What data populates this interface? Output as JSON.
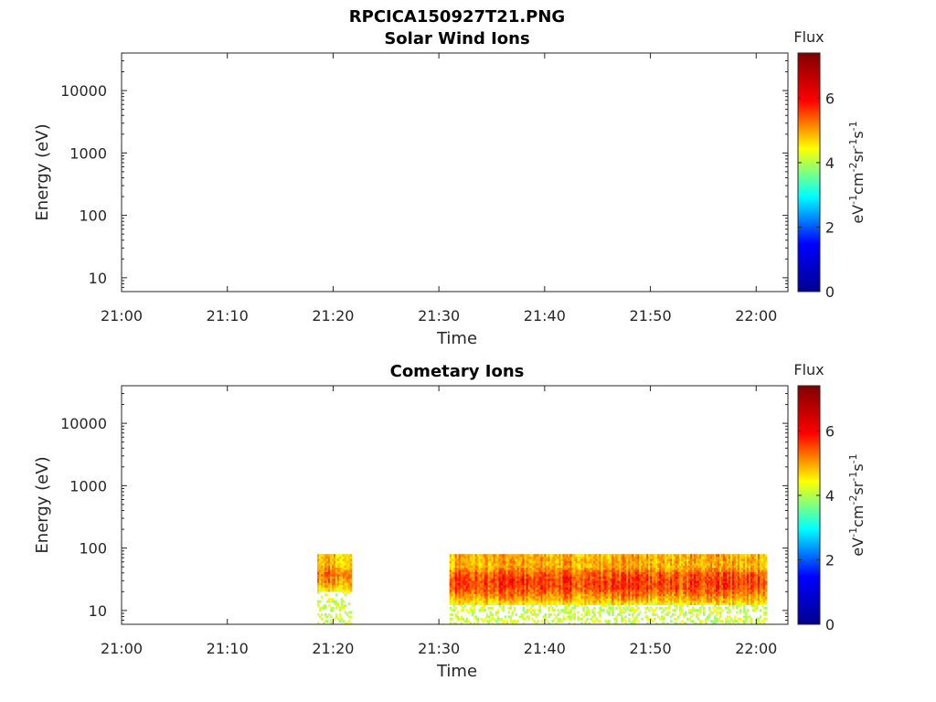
{
  "figure": {
    "title": "RPCICA150927T21.PNG"
  },
  "colorbar": {
    "label": "Flux",
    "unit_parts": [
      "eV",
      "-1",
      "cm",
      "-2",
      "sr",
      "-1",
      "s",
      "-1"
    ],
    "ticks": [
      "0",
      "2",
      "4",
      "6"
    ],
    "range": [
      0,
      7.4
    ],
    "colormap": "jet",
    "colors": [
      "#00008f",
      "#0000ff",
      "#00ffff",
      "#ffff00",
      "#ff0000",
      "#800000"
    ]
  },
  "chart_data": [
    {
      "type": "heatmap",
      "title": "Solar Wind Ions",
      "xlabel": "Time",
      "ylabel": "Energy (eV)",
      "yscale": "log",
      "xlim": [
        "21:00",
        "22:03"
      ],
      "ylim": [
        6,
        40000
      ],
      "xticks": [
        "21:00",
        "21:10",
        "21:20",
        "21:30",
        "21:40",
        "21:50",
        "22:00"
      ],
      "yticks": [
        "10",
        "100",
        "1000",
        "10000"
      ],
      "ytick_values": [
        10,
        100,
        1000,
        10000
      ],
      "segments": []
    },
    {
      "type": "heatmap",
      "title": "Cometary Ions",
      "xlabel": "Time",
      "ylabel": "Energy (eV)",
      "yscale": "log",
      "xlim": [
        "21:00",
        "22:03"
      ],
      "ylim": [
        6,
        40000
      ],
      "xticks": [
        "21:00",
        "21:10",
        "21:20",
        "21:30",
        "21:40",
        "21:50",
        "22:00"
      ],
      "yticks": [
        "10",
        "100",
        "1000",
        "10000"
      ],
      "ytick_values": [
        10,
        100,
        1000,
        10000
      ],
      "segments": [
        {
          "start": "21:18:30",
          "end": "21:21:45",
          "energy_min": 6,
          "energy_max": 80,
          "peak_flux": 6.0,
          "solid_min": 20
        },
        {
          "start": "21:31:00",
          "end": "22:01:00",
          "energy_min": 6,
          "energy_max": 80,
          "peak_flux": 6.5,
          "solid_min": 12
        }
      ]
    }
  ]
}
